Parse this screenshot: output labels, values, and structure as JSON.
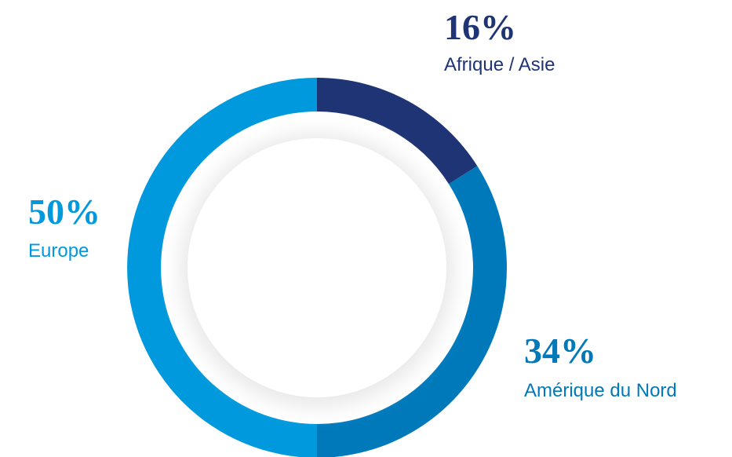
{
  "chart_data": {
    "type": "pie",
    "categories": [
      "Afrique / Asie",
      "Amérique du Nord",
      "Europe"
    ],
    "values": [
      16,
      34,
      50
    ],
    "value_labels": [
      "16%",
      "34%",
      "50%"
    ],
    "colors": [
      "#1f3475",
      "#0079bb",
      "#0099dd"
    ]
  }
}
